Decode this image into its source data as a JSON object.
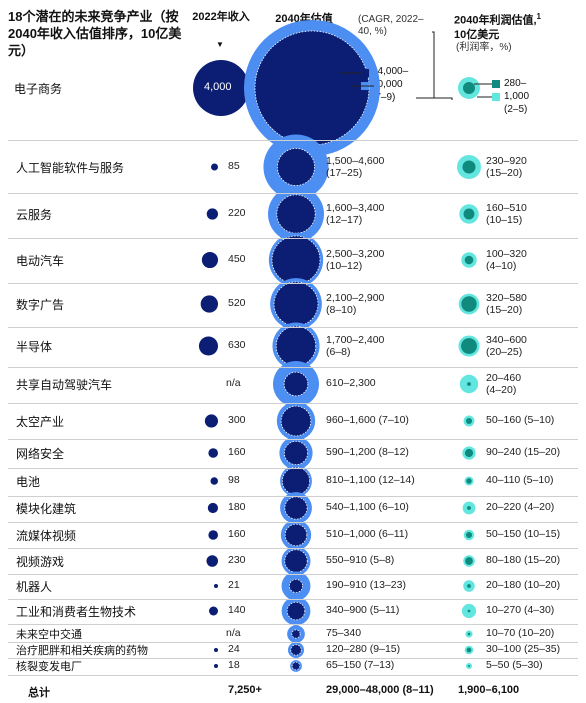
{
  "title": "18个潜在的未来竞争产业（按2040年收入估值排序，10亿美元）",
  "headers": {
    "rev2022": "2022年收入",
    "rev2040": "2040年估值",
    "cagr_note": "(CAGR, 2022–40, %)",
    "profit2040": "2040年利润估值,",
    "profit2040_sup": "1",
    "profit2040_unit": "10亿美元",
    "profit_note": "(利润率，%)"
  },
  "legend": {
    "rev_low": "14,000–",
    "rev_high": "20,000",
    "rev_cagr": "(7–9)",
    "profit_low": "280–",
    "profit_high": "1,000",
    "profit_margin": "(2–5)"
  },
  "colors": {
    "rev2022": "#0b1e74",
    "rev2040_low": "#0b1e74",
    "rev2040_high": "#4d8ef2",
    "profit_low": "#0f8a7d",
    "profit_high": "#62e6df"
  },
  "chart_data": {
    "type": "table",
    "rows": [
      {
        "name": "电子商务",
        "rev2022": 4000,
        "rev2022_label": "4,000",
        "rev2040_low": 14000,
        "rev2040_high": 20000,
        "rev2040_label": "14,000–20,000",
        "cagr": "(7–9)",
        "profit_low": 280,
        "profit_high": 1000,
        "profit_label": "280–1,000",
        "margin": "(2–5)"
      },
      {
        "name": "人工智能软件与服务",
        "rev2022": 85,
        "rev2022_label": "85",
        "rev2040_low": 1500,
        "rev2040_high": 4600,
        "rev2040_label": "1,500–4,600",
        "cagr": "(17–25)",
        "profit_low": 230,
        "profit_high": 920,
        "profit_label": "230–920",
        "margin": "(15–20)"
      },
      {
        "name": "云服务",
        "rev2022": 220,
        "rev2022_label": "220",
        "rev2040_low": 1600,
        "rev2040_high": 3400,
        "rev2040_label": "1,600–3,400",
        "cagr": "(12–17)",
        "profit_low": 160,
        "profit_high": 510,
        "profit_label": "160–510",
        "margin": "(10–15)"
      },
      {
        "name": "电动汽车",
        "rev2022": 450,
        "rev2022_label": "450",
        "rev2040_low": 2500,
        "rev2040_high": 3200,
        "rev2040_label": "2,500–3,200",
        "cagr": "(10–12)",
        "profit_low": 100,
        "profit_high": 320,
        "profit_label": "100–320",
        "margin": "(4–10)"
      },
      {
        "name": "数字广告",
        "rev2022": 520,
        "rev2022_label": "520",
        "rev2040_low": 2100,
        "rev2040_high": 2900,
        "rev2040_label": "2,100–2,900",
        "cagr": "(8–10)",
        "profit_low": 320,
        "profit_high": 580,
        "profit_label": "320–580",
        "margin": "(15–20)"
      },
      {
        "name": "半导体",
        "rev2022": 630,
        "rev2022_label": "630",
        "rev2040_low": 1700,
        "rev2040_high": 2400,
        "rev2040_label": "1,700–2,400",
        "cagr": "(6–8)",
        "profit_low": 340,
        "profit_high": 600,
        "profit_label": "340–600",
        "margin": "(20–25)"
      },
      {
        "name": "共享自动驾驶汽车",
        "rev2022": null,
        "rev2022_label": "n/a",
        "rev2040_low": 610,
        "rev2040_high": 2300,
        "rev2040_label": "610–2,300",
        "cagr": "",
        "profit_low": 20,
        "profit_high": 460,
        "profit_label": "20–460",
        "margin": "(4–20)"
      },
      {
        "name": "太空产业",
        "rev2022": 300,
        "rev2022_label": "300",
        "rev2040_low": 960,
        "rev2040_high": 1600,
        "rev2040_label": "960–1,600",
        "cagr": "(7–10)",
        "profit_low": 50,
        "profit_high": 160,
        "profit_label": "50–160",
        "margin": "(5–10)"
      },
      {
        "name": "网络安全",
        "rev2022": 160,
        "rev2022_label": "160",
        "rev2040_low": 590,
        "rev2040_high": 1200,
        "rev2040_label": "590–1,200",
        "cagr": "(8–12)",
        "profit_low": 90,
        "profit_high": 240,
        "profit_label": "90–240",
        "margin": "(15–20)"
      },
      {
        "name": "电池",
        "rev2022": 98,
        "rev2022_label": "98",
        "rev2040_low": 810,
        "rev2040_high": 1100,
        "rev2040_label": "810–1,100",
        "cagr": "(12–14)",
        "profit_low": 40,
        "profit_high": 110,
        "profit_label": "40–110",
        "margin": "(5–10)"
      },
      {
        "name": "模块化建筑",
        "rev2022": 180,
        "rev2022_label": "180",
        "rev2040_low": 540,
        "rev2040_high": 1100,
        "rev2040_label": "540–1,100",
        "cagr": "(6–10)",
        "profit_low": 20,
        "profit_high": 220,
        "profit_label": "20–220",
        "margin": "(4–20)"
      },
      {
        "name": "流媒体视频",
        "rev2022": 160,
        "rev2022_label": "160",
        "rev2040_low": 510,
        "rev2040_high": 1000,
        "rev2040_label": "510–1,000",
        "cagr": "(6–11)",
        "profit_low": 50,
        "profit_high": 150,
        "profit_label": "50–150",
        "margin": "(10–15)"
      },
      {
        "name": "视频游戏",
        "rev2022": 230,
        "rev2022_label": "230",
        "rev2040_low": 550,
        "rev2040_high": 910,
        "rev2040_label": "550–910",
        "cagr": "(5–8)",
        "profit_low": 80,
        "profit_high": 180,
        "profit_label": "80–180",
        "margin": "(15–20)"
      },
      {
        "name": "机器人",
        "rev2022": 21,
        "rev2022_label": "21",
        "rev2040_low": 190,
        "rev2040_high": 910,
        "rev2040_label": "190–910",
        "cagr": "(13–23)",
        "profit_low": 20,
        "profit_high": 180,
        "profit_label": "20–180",
        "margin": "(10–20)"
      },
      {
        "name": "工业和消费者生物技术",
        "rev2022": 140,
        "rev2022_label": "140",
        "rev2040_low": 340,
        "rev2040_high": 900,
        "rev2040_label": "340–900",
        "cagr": "(5–11)",
        "profit_low": 10,
        "profit_high": 270,
        "profit_label": "10–270",
        "margin": "(4–30)"
      },
      {
        "name": "未来空中交通",
        "rev2022": null,
        "rev2022_label": "n/a",
        "rev2040_low": 75,
        "rev2040_high": 340,
        "rev2040_label": "75–340",
        "cagr": "",
        "profit_low": 10,
        "profit_high": 70,
        "profit_label": "10–70",
        "margin": "(10–20)"
      },
      {
        "name": "治疗肥胖和相关疾病的药物",
        "rev2022": 24,
        "rev2022_label": "24",
        "rev2040_low": 120,
        "rev2040_high": 280,
        "rev2040_label": "120–280",
        "cagr": "(9–15)",
        "profit_low": 30,
        "profit_high": 100,
        "profit_label": "30–100",
        "margin": "(25–35)"
      },
      {
        "name": "核裂变发电厂",
        "rev2022": 18,
        "rev2022_label": "18",
        "rev2040_low": 65,
        "rev2040_high": 150,
        "rev2040_label": "65–150",
        "cagr": "(7–13)",
        "profit_low": 5,
        "profit_high": 50,
        "profit_label": "5–50",
        "margin": "(5–30)"
      }
    ],
    "total": {
      "label": "总计",
      "rev2022": "7,250+",
      "rev2040": "29,000–48,000 (8–11)",
      "profit": "1,900–6,100"
    }
  }
}
